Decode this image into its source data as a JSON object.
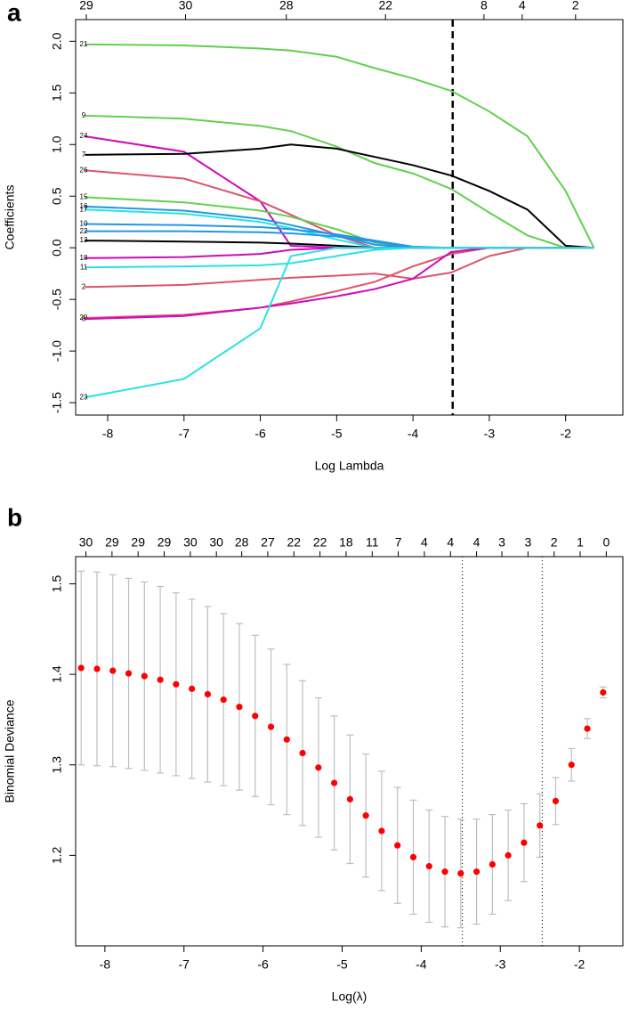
{
  "chart_data": [
    {
      "type": "line",
      "panel_label": "a",
      "x_label": "Log Lambda",
      "y_label": "Coefficients",
      "xlim": [
        -8.42,
        -1.25
      ],
      "ylim": [
        -1.62,
        2.21
      ],
      "xticks": [
        -8,
        -7,
        -6,
        -5,
        -4,
        -3,
        -2
      ],
      "yticks": [
        -1.5,
        {
          "value": -1,
          "label": "-1.0"
        },
        -0.5,
        {
          "value": 0,
          "label": "0.0"
        },
        0.5,
        {
          "value": 1,
          "label": "1.0"
        },
        1.5,
        {
          "value": 2,
          "label": "2.0"
        }
      ],
      "top_ticks": [
        {
          "value": -8.28,
          "label": "29"
        },
        {
          "value": -6.98,
          "label": "30"
        },
        {
          "value": -5.66,
          "label": "28"
        },
        {
          "value": -4.36,
          "label": "22"
        },
        {
          "value": -3.07,
          "label": "8"
        },
        {
          "value": -2.57,
          "label": "4"
        },
        {
          "value": -1.87,
          "label": "2"
        }
      ],
      "reference_lines": [
        -3.48
      ],
      "reference_style": "dashed",
      "x": [
        -8.3,
        -7,
        -6,
        -5.6,
        -5,
        -4.5,
        -4,
        -3.5,
        -3,
        -2.5,
        -2,
        -1.63
      ],
      "series": [
        {
          "name": "21",
          "color": "#61D04F",
          "values": [
            1.97,
            1.96,
            1.93,
            1.91,
            1.85,
            1.74,
            1.64,
            1.52,
            1.32,
            1.08,
            0.55,
            0
          ]
        },
        {
          "name": "9",
          "color": "#61D04F",
          "values": [
            1.28,
            1.25,
            1.18,
            1.13,
            0.98,
            0.82,
            0.72,
            0.57,
            0.34,
            0.12,
            0,
            0
          ]
        },
        {
          "name": "24",
          "color": "#CD0BBC",
          "values": [
            1.08,
            0.93,
            0.45,
            0.02,
            0,
            0,
            0,
            0,
            0,
            0,
            0,
            0
          ]
        },
        {
          "name": "7",
          "color": "#000000",
          "values": [
            0.9,
            0.91,
            0.96,
            1.0,
            0.96,
            0.88,
            0.8,
            0.7,
            0.55,
            0.37,
            0.02,
            0
          ]
        },
        {
          "name": "26",
          "color": "#DF536B",
          "values": [
            0.75,
            0.67,
            0.45,
            0.32,
            0.12,
            0,
            0,
            0,
            0,
            0,
            0,
            0
          ]
        },
        {
          "name": "15",
          "color": "#61D04F",
          "values": [
            0.49,
            0.44,
            0.36,
            0.3,
            0.18,
            0.05,
            0,
            0,
            0,
            0,
            0,
            0
          ]
        },
        {
          "name": "16",
          "color": "#2297E6",
          "values": [
            0.4,
            0.36,
            0.28,
            0.22,
            0.12,
            0.03,
            0,
            0,
            0,
            0,
            0,
            0
          ]
        },
        {
          "name": "17",
          "color": "#28E2E5",
          "values": [
            0.37,
            0.33,
            0.25,
            0.19,
            0.08,
            0,
            0,
            0,
            0,
            0,
            0,
            0
          ]
        },
        {
          "name": "10",
          "color": "#2297E6",
          "values": [
            0.23,
            0.22,
            0.2,
            0.18,
            0.13,
            0.07,
            0.01,
            0,
            0,
            0,
            0,
            0
          ]
        },
        {
          "name": "22",
          "color": "#2297E6",
          "values": [
            0.16,
            0.16,
            0.15,
            0.14,
            0.11,
            0.06,
            0,
            0,
            0,
            0,
            0,
            0
          ]
        },
        {
          "name": "13",
          "color": "#000000",
          "values": [
            0.07,
            0.06,
            0.05,
            0.04,
            0.02,
            0,
            0,
            0,
            0,
            0,
            0,
            0
          ]
        },
        {
          "name": "18",
          "color": "#CD0BBC",
          "values": [
            -0.1,
            -0.09,
            -0.06,
            -0.02,
            0,
            0,
            0,
            0,
            0,
            0,
            0,
            0
          ]
        },
        {
          "name": "11",
          "color": "#28E2E5",
          "values": [
            -0.19,
            -0.18,
            -0.17,
            -0.15,
            -0.08,
            -0.02,
            0,
            0,
            0,
            0,
            0,
            0
          ]
        },
        {
          "name": "2",
          "color": "#DF536B",
          "values": [
            -0.38,
            -0.36,
            -0.31,
            -0.29,
            -0.27,
            -0.25,
            -0.3,
            -0.24,
            -0.08,
            0,
            0,
            0
          ]
        },
        {
          "name": "20",
          "color": "#DF536B",
          "values": [
            -0.68,
            -0.65,
            -0.58,
            -0.52,
            -0.42,
            -0.33,
            -0.18,
            -0.06,
            0,
            0,
            0,
            0
          ]
        },
        {
          "name": "8",
          "color": "#CD0BBC",
          "values": [
            -0.69,
            -0.66,
            -0.58,
            -0.54,
            -0.47,
            -0.4,
            -0.3,
            -0.04,
            0,
            0,
            0,
            0
          ]
        },
        {
          "name": "23",
          "color": "#28E2E5",
          "values": [
            -1.45,
            -1.27,
            -0.78,
            -0.08,
            0,
            0,
            0,
            0,
            0,
            0,
            0,
            0
          ]
        }
      ]
    },
    {
      "type": "scatter",
      "panel_label": "b",
      "x_label": "Log(λ)",
      "y_label": "Binomial Deviance",
      "xlim": [
        -8.37,
        -1.45
      ],
      "ylim": [
        1.1,
        1.53
      ],
      "xticks": [
        -8,
        -7,
        -6,
        -5,
        -4,
        -3,
        -2
      ],
      "yticks": [
        1.2,
        1.3,
        1.4,
        1.5
      ],
      "top_ticks": [
        {
          "value": -8.24,
          "label": "30"
        },
        {
          "value": -7.91,
          "label": "29"
        },
        {
          "value": -7.58,
          "label": "29"
        },
        {
          "value": -7.25,
          "label": "29"
        },
        {
          "value": -6.92,
          "label": "30"
        },
        {
          "value": -6.59,
          "label": "30"
        },
        {
          "value": -6.27,
          "label": "28"
        },
        {
          "value": -5.94,
          "label": "27"
        },
        {
          "value": -5.61,
          "label": "22"
        },
        {
          "value": -5.28,
          "label": "22"
        },
        {
          "value": -4.95,
          "label": "18"
        },
        {
          "value": -4.62,
          "label": "11"
        },
        {
          "value": -4.29,
          "label": "7"
        },
        {
          "value": -3.96,
          "label": "4"
        },
        {
          "value": -3.63,
          "label": "4"
        },
        {
          "value": -3.3,
          "label": "4"
        },
        {
          "value": -2.98,
          "label": "3"
        },
        {
          "value": -2.65,
          "label": "3"
        },
        {
          "value": -2.32,
          "label": "2"
        },
        {
          "value": -1.99,
          "label": "1"
        },
        {
          "value": -1.66,
          "label": "0"
        }
      ],
      "reference_lines": [
        -3.48,
        -2.47
      ],
      "reference_style": "dotted",
      "color": "#FF0000",
      "error_color": "#BEBEBE",
      "x": [
        -8.3,
        -8.1,
        -7.9,
        -7.7,
        -7.5,
        -7.3,
        -7.1,
        -6.9,
        -6.7,
        -6.5,
        -6.3,
        -6.1,
        -5.9,
        -5.7,
        -5.5,
        -5.3,
        -5.1,
        -4.9,
        -4.7,
        -4.5,
        -4.3,
        -4.1,
        -3.9,
        -3.7,
        -3.5,
        -3.3,
        -3.1,
        -2.9,
        -2.7,
        -2.5,
        -2.3,
        -2.1,
        -1.9,
        -1.7
      ],
      "values": [
        1.407,
        1.406,
        1.404,
        1.401,
        1.398,
        1.394,
        1.389,
        1.384,
        1.378,
        1.372,
        1.364,
        1.354,
        1.342,
        1.328,
        1.313,
        1.297,
        1.28,
        1.262,
        1.244,
        1.227,
        1.211,
        1.198,
        1.188,
        1.182,
        1.18,
        1.182,
        1.19,
        1.2,
        1.214,
        1.233,
        1.26,
        1.3,
        1.34,
        1.38
      ],
      "errors": [
        0.107,
        0.107,
        0.106,
        0.105,
        0.104,
        0.103,
        0.101,
        0.099,
        0.097,
        0.095,
        0.092,
        0.089,
        0.086,
        0.083,
        0.08,
        0.077,
        0.074,
        0.071,
        0.068,
        0.066,
        0.064,
        0.063,
        0.062,
        0.061,
        0.06,
        0.058,
        0.055,
        0.05,
        0.043,
        0.035,
        0.026,
        0.018,
        0.011,
        0.006
      ]
    }
  ]
}
